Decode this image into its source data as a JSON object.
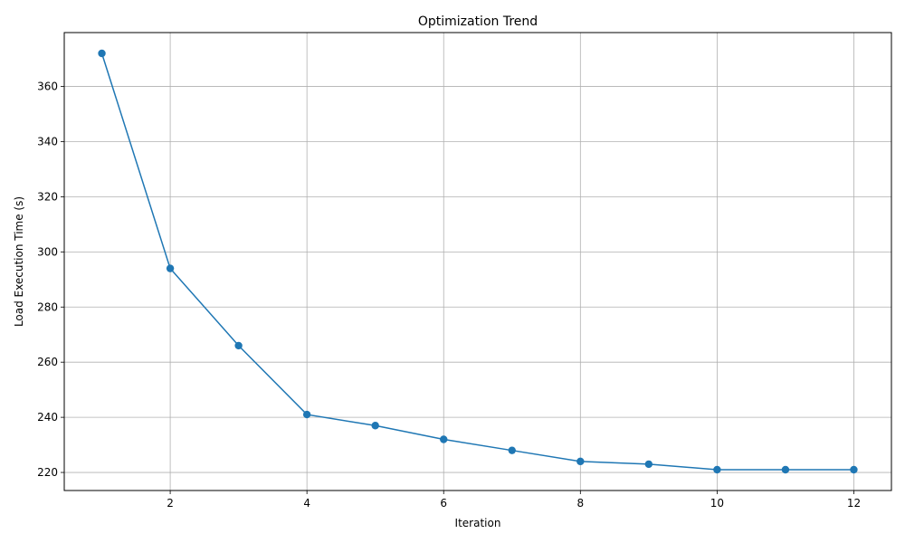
{
  "chart_data": {
    "type": "line",
    "title": "Optimization Trend",
    "xlabel": "Iteration",
    "ylabel": "Load Execution Time (s)",
    "xlim": [
      0.45,
      12.55
    ],
    "ylim": [
      213.45,
      379.55
    ],
    "x_ticks": [
      2,
      4,
      6,
      8,
      10,
      12
    ],
    "y_ticks": [
      220,
      240,
      260,
      280,
      300,
      320,
      340,
      360
    ],
    "grid": true,
    "series": [
      {
        "color": "#1f77b4",
        "marker": "circle",
        "x": [
          1,
          2,
          3,
          4,
          5,
          6,
          7,
          8,
          9,
          10,
          11,
          12
        ],
        "y": [
          372,
          294,
          266,
          241,
          237,
          232,
          228,
          224,
          223,
          221,
          221,
          221
        ]
      }
    ]
  }
}
